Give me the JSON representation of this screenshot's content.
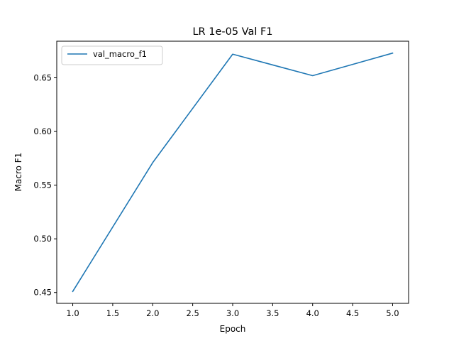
{
  "chart_data": {
    "type": "line",
    "title": "LR 1e-05 Val F1",
    "xlabel": "Epoch",
    "ylabel": "Macro F1",
    "x": [
      1.0,
      2.0,
      3.0,
      4.0,
      5.0
    ],
    "series": [
      {
        "name": "val_macro_f1",
        "values": [
          0.451,
          0.571,
          0.672,
          0.652,
          0.673
        ],
        "color": "#1f77b4"
      }
    ],
    "xlim": [
      0.8,
      5.2
    ],
    "ylim": [
      0.4399,
      0.6841
    ],
    "xticks": [
      1.0,
      1.5,
      2.0,
      2.5,
      3.0,
      3.5,
      4.0,
      4.5,
      5.0
    ],
    "xtick_labels": [
      "1.0",
      "1.5",
      "2.0",
      "2.5",
      "3.0",
      "3.5",
      "4.0",
      "4.5",
      "5.0"
    ],
    "yticks": [
      0.45,
      0.5,
      0.55,
      0.6,
      0.65
    ],
    "ytick_labels": [
      "0.45",
      "0.50",
      "0.55",
      "0.60",
      "0.65"
    ],
    "grid": false,
    "legend": "upper left"
  }
}
